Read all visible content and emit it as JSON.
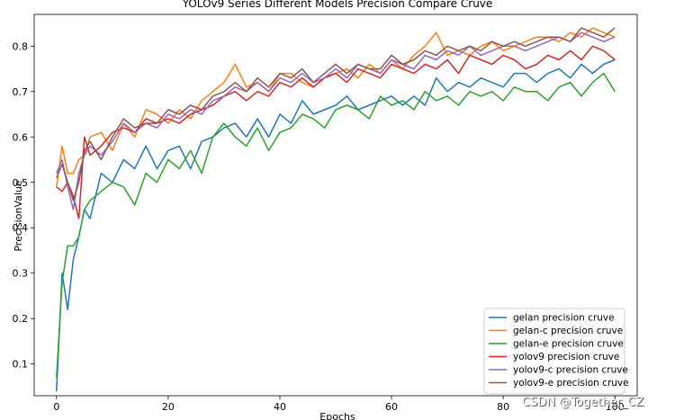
{
  "watermark": "CSDN @Together_CZ",
  "chart_data": {
    "type": "line",
    "title": "YOLOv9 Series Different Models Precision Compare Cruve",
    "xlabel": "Epochs",
    "ylabel": "PrecisionValue",
    "xlim": [
      -4,
      104
    ],
    "ylim": [
      0.03,
      0.87
    ],
    "xticks": [
      0,
      20,
      40,
      60,
      80,
      100
    ],
    "yticks": [
      0.1,
      0.2,
      0.3,
      0.4,
      0.5,
      0.6,
      0.7,
      0.8
    ],
    "grid": false,
    "legend_position": "lower-right",
    "series": [
      {
        "name": "gelan precision cruve",
        "color": "#1f77b4",
        "x": [
          0,
          1,
          2,
          3,
          4,
          5,
          6,
          8,
          10,
          12,
          14,
          16,
          18,
          20,
          22,
          24,
          26,
          28,
          30,
          32,
          34,
          36,
          38,
          40,
          42,
          44,
          46,
          48,
          50,
          52,
          54,
          56,
          58,
          60,
          62,
          64,
          66,
          68,
          70,
          72,
          74,
          76,
          78,
          80,
          82,
          84,
          86,
          88,
          90,
          92,
          94,
          96,
          98,
          100
        ],
        "y": [
          0.04,
          0.3,
          0.22,
          0.33,
          0.38,
          0.44,
          0.42,
          0.52,
          0.5,
          0.55,
          0.53,
          0.58,
          0.53,
          0.57,
          0.58,
          0.53,
          0.59,
          0.6,
          0.62,
          0.63,
          0.6,
          0.64,
          0.6,
          0.65,
          0.63,
          0.68,
          0.65,
          0.66,
          0.67,
          0.69,
          0.66,
          0.67,
          0.68,
          0.69,
          0.67,
          0.69,
          0.67,
          0.73,
          0.7,
          0.72,
          0.71,
          0.73,
          0.72,
          0.71,
          0.74,
          0.74,
          0.72,
          0.74,
          0.75,
          0.73,
          0.76,
          0.74,
          0.76,
          0.77
        ]
      },
      {
        "name": "gelan-c precision cruve",
        "color": "#ff7f0e",
        "x": [
          0,
          1,
          2,
          3,
          4,
          5,
          6,
          8,
          10,
          12,
          14,
          16,
          18,
          20,
          22,
          24,
          26,
          28,
          30,
          32,
          34,
          36,
          38,
          40,
          42,
          44,
          46,
          48,
          50,
          52,
          54,
          56,
          58,
          60,
          62,
          64,
          66,
          68,
          70,
          72,
          74,
          76,
          78,
          80,
          82,
          84,
          86,
          88,
          90,
          92,
          94,
          96,
          98,
          100
        ],
        "y": [
          0.49,
          0.58,
          0.52,
          0.52,
          0.55,
          0.56,
          0.6,
          0.61,
          0.57,
          0.63,
          0.6,
          0.66,
          0.65,
          0.63,
          0.66,
          0.64,
          0.68,
          0.7,
          0.72,
          0.76,
          0.71,
          0.72,
          0.7,
          0.74,
          0.74,
          0.72,
          0.71,
          0.73,
          0.74,
          0.75,
          0.73,
          0.76,
          0.74,
          0.77,
          0.75,
          0.78,
          0.8,
          0.83,
          0.78,
          0.79,
          0.78,
          0.8,
          0.81,
          0.79,
          0.8,
          0.81,
          0.82,
          0.82,
          0.81,
          0.83,
          0.82,
          0.84,
          0.83,
          0.82
        ]
      },
      {
        "name": "gelan-e precision cruve",
        "color": "#2ca02c",
        "x": [
          0,
          1,
          2,
          3,
          4,
          5,
          6,
          8,
          10,
          12,
          14,
          16,
          18,
          20,
          22,
          24,
          26,
          28,
          30,
          32,
          34,
          36,
          38,
          40,
          42,
          44,
          46,
          48,
          50,
          52,
          54,
          56,
          58,
          60,
          62,
          64,
          66,
          68,
          70,
          72,
          74,
          76,
          78,
          80,
          82,
          84,
          86,
          88,
          90,
          92,
          94,
          96,
          98,
          100
        ],
        "y": [
          0.07,
          0.28,
          0.36,
          0.36,
          0.38,
          0.44,
          0.46,
          0.48,
          0.5,
          0.49,
          0.45,
          0.52,
          0.5,
          0.55,
          0.53,
          0.57,
          0.52,
          0.6,
          0.63,
          0.6,
          0.58,
          0.62,
          0.57,
          0.61,
          0.62,
          0.65,
          0.64,
          0.62,
          0.66,
          0.67,
          0.66,
          0.64,
          0.69,
          0.67,
          0.68,
          0.66,
          0.7,
          0.68,
          0.69,
          0.67,
          0.7,
          0.69,
          0.7,
          0.68,
          0.71,
          0.7,
          0.7,
          0.68,
          0.71,
          0.72,
          0.69,
          0.72,
          0.74,
          0.7
        ]
      },
      {
        "name": "yolov9 precision cruve",
        "color": "#d62728",
        "x": [
          0,
          1,
          2,
          3,
          4,
          5,
          6,
          8,
          10,
          12,
          14,
          16,
          18,
          20,
          22,
          24,
          26,
          28,
          30,
          32,
          34,
          36,
          38,
          40,
          42,
          44,
          46,
          48,
          50,
          52,
          54,
          56,
          58,
          60,
          62,
          64,
          66,
          68,
          70,
          72,
          74,
          76,
          78,
          80,
          82,
          84,
          86,
          88,
          90,
          92,
          94,
          96,
          98,
          100
        ],
        "y": [
          0.49,
          0.48,
          0.5,
          0.47,
          0.42,
          0.6,
          0.56,
          0.58,
          0.61,
          0.62,
          0.61,
          0.64,
          0.63,
          0.64,
          0.63,
          0.65,
          0.66,
          0.67,
          0.69,
          0.7,
          0.68,
          0.7,
          0.69,
          0.72,
          0.71,
          0.73,
          0.71,
          0.73,
          0.74,
          0.72,
          0.75,
          0.74,
          0.73,
          0.76,
          0.75,
          0.74,
          0.76,
          0.75,
          0.77,
          0.74,
          0.78,
          0.77,
          0.76,
          0.78,
          0.77,
          0.75,
          0.76,
          0.78,
          0.77,
          0.79,
          0.77,
          0.8,
          0.79,
          0.77
        ]
      },
      {
        "name": "yolov9-c precision cruve",
        "color": "#9467bd",
        "x": [
          0,
          1,
          2,
          3,
          4,
          5,
          6,
          8,
          10,
          12,
          14,
          16,
          18,
          20,
          22,
          24,
          26,
          28,
          30,
          32,
          34,
          36,
          38,
          40,
          42,
          44,
          46,
          48,
          50,
          52,
          54,
          56,
          58,
          60,
          62,
          64,
          66,
          68,
          70,
          72,
          74,
          76,
          78,
          80,
          82,
          84,
          86,
          88,
          90,
          92,
          94,
          96,
          98,
          100
        ],
        "y": [
          0.52,
          0.55,
          0.49,
          0.44,
          0.52,
          0.56,
          0.58,
          0.56,
          0.59,
          0.63,
          0.61,
          0.63,
          0.62,
          0.65,
          0.64,
          0.66,
          0.65,
          0.68,
          0.69,
          0.71,
          0.7,
          0.72,
          0.7,
          0.73,
          0.72,
          0.74,
          0.72,
          0.73,
          0.75,
          0.73,
          0.76,
          0.75,
          0.74,
          0.77,
          0.76,
          0.75,
          0.78,
          0.77,
          0.79,
          0.78,
          0.8,
          0.78,
          0.79,
          0.8,
          0.8,
          0.79,
          0.8,
          0.81,
          0.82,
          0.81,
          0.83,
          0.82,
          0.81,
          0.82
        ]
      },
      {
        "name": "yolov9-e precision cruve",
        "color": "#8c564b",
        "x": [
          0,
          1,
          2,
          3,
          4,
          5,
          6,
          8,
          10,
          12,
          14,
          16,
          18,
          20,
          22,
          24,
          26,
          28,
          30,
          32,
          34,
          36,
          38,
          40,
          42,
          44,
          46,
          48,
          50,
          52,
          54,
          56,
          58,
          60,
          62,
          64,
          66,
          68,
          70,
          72,
          74,
          76,
          78,
          80,
          82,
          84,
          86,
          88,
          90,
          92,
          94,
          96,
          98,
          100
        ],
        "y": [
          0.51,
          0.54,
          0.5,
          0.46,
          0.5,
          0.57,
          0.59,
          0.55,
          0.6,
          0.64,
          0.62,
          0.63,
          0.63,
          0.66,
          0.65,
          0.67,
          0.66,
          0.69,
          0.7,
          0.72,
          0.7,
          0.73,
          0.71,
          0.74,
          0.73,
          0.75,
          0.72,
          0.74,
          0.76,
          0.74,
          0.76,
          0.75,
          0.75,
          0.78,
          0.76,
          0.77,
          0.79,
          0.78,
          0.8,
          0.79,
          0.8,
          0.79,
          0.81,
          0.8,
          0.81,
          0.8,
          0.81,
          0.82,
          0.82,
          0.81,
          0.84,
          0.83,
          0.82,
          0.84
        ]
      }
    ]
  }
}
